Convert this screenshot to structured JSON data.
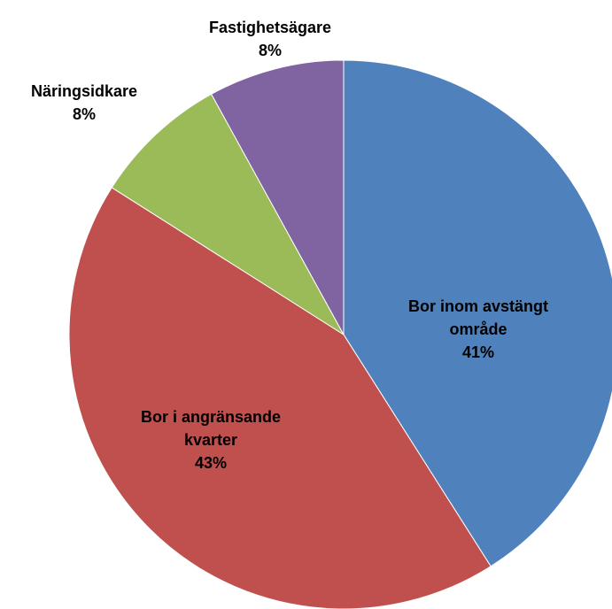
{
  "chart_data": {
    "type": "pie",
    "categories": [
      "Bor inom avstängt område",
      "Bor i angränsande kvarter",
      "Näringsidkare",
      "Fastighetsägare"
    ],
    "values": [
      41,
      43,
      8,
      8
    ],
    "value_labels": [
      "41%",
      "43%",
      "8%",
      "8%"
    ],
    "colors": [
      "#4f81bd",
      "#c0504d",
      "#9bbb59",
      "#8064a2"
    ]
  }
}
